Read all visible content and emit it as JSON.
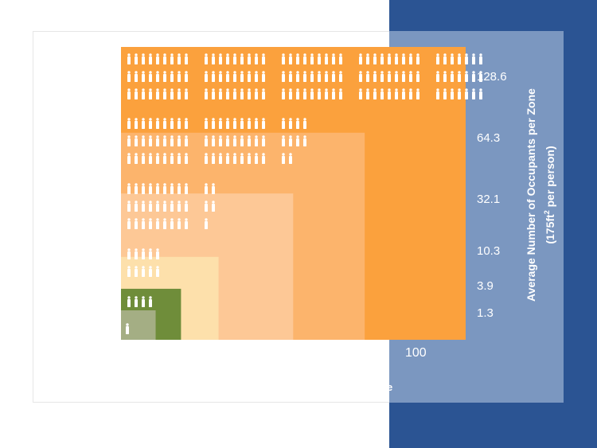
{
  "chart_data": {
    "type": "area",
    "form": "nested proportional area chart with person pictograms",
    "ylabel_line1": "Average Number of Occupants per Zone",
    "ylabel_line2_prefix": "(175ft",
    "ylabel_line2_sup": "2",
    "ylabel_line2_suffix": " per person)",
    "x_tick_label": "100",
    "x_axis_fragment": "ne",
    "series": [
      {
        "value": 128.6,
        "label": "128.6",
        "color": "#fba13d"
      },
      {
        "value": 64.3,
        "label": "64.3",
        "color": "#fcb46c"
      },
      {
        "value": 32.1,
        "label": "32.1",
        "color": "#fdc896"
      },
      {
        "value": 10.3,
        "label": "10.3",
        "color": "#fde0ab"
      },
      {
        "value": 3.9,
        "label": "3.9",
        "color": "#6f8d3a"
      },
      {
        "value": 1.3,
        "label": "1.3",
        "color": "#a4ae84"
      }
    ]
  },
  "colors": {
    "blue_background": "#2b5493",
    "axis_panel": "#7b97c0",
    "pictogram": "#ffffff"
  }
}
